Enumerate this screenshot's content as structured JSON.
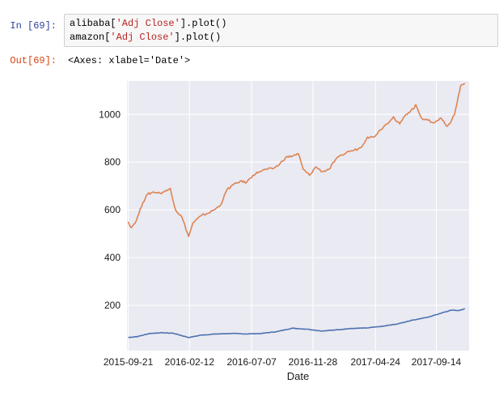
{
  "input_cell": {
    "prompt": "In  [69]:",
    "lines": [
      {
        "prefix": "alibaba[",
        "string": "'Adj Close'",
        "suffix": "].plot()"
      },
      {
        "prefix": "amazon[",
        "string": "'Adj Close'",
        "suffix": "].plot()"
      }
    ]
  },
  "output_cell": {
    "prompt": "Out[69]:",
    "text": "<Axes: xlabel='Date'>"
  },
  "colors": {
    "background": "#eaeaf2",
    "grid": "#ffffff",
    "series_blue": "#4c72b0",
    "series_orange": "#dd8452"
  },
  "chart_data": {
    "type": "line",
    "title": "",
    "xlabel": "Date",
    "ylabel": "",
    "xlim": [
      "2015-09-18",
      "2017-11-30"
    ],
    "ylim": [
      10,
      1140
    ],
    "grid": true,
    "x_ticks": [
      "2015-09-21",
      "2016-02-12",
      "2016-07-07",
      "2016-11-28",
      "2017-04-24",
      "2017-09-14"
    ],
    "y_ticks": [
      200,
      400,
      600,
      800,
      1000
    ],
    "series": [
      {
        "color": "#4c72b0",
        "x": [
          "2015-09-21",
          "2015-10-15",
          "2015-11-10",
          "2015-12-05",
          "2016-01-05",
          "2016-02-10",
          "2016-03-10",
          "2016-04-15",
          "2016-05-20",
          "2016-06-25",
          "2016-07-30",
          "2016-09-05",
          "2016-10-10",
          "2016-11-15",
          "2016-12-20",
          "2017-01-25",
          "2017-03-01",
          "2017-04-05",
          "2017-05-10",
          "2017-06-15",
          "2017-07-20",
          "2017-08-25",
          "2017-09-30",
          "2017-10-20",
          "2017-11-05",
          "2017-11-20"
        ],
        "y": [
          65,
          70,
          82,
          85,
          83,
          65,
          75,
          80,
          82,
          80,
          82,
          90,
          104,
          100,
          92,
          98,
          103,
          105,
          112,
          122,
          138,
          150,
          170,
          180,
          178,
          186
        ]
      },
      {
        "color": "#dd8452",
        "x": [
          "2015-09-21",
          "2015-09-28",
          "2015-10-10",
          "2015-10-25",
          "2015-11-05",
          "2015-11-20",
          "2015-12-05",
          "2015-12-20",
          "2015-12-29",
          "2016-01-10",
          "2016-01-25",
          "2016-02-10",
          "2016-02-20",
          "2016-03-10",
          "2016-03-25",
          "2016-04-10",
          "2016-04-25",
          "2016-05-10",
          "2016-05-25",
          "2016-06-10",
          "2016-06-25",
          "2016-07-10",
          "2016-07-25",
          "2016-08-10",
          "2016-08-25",
          "2016-09-10",
          "2016-09-25",
          "2016-10-10",
          "2016-10-25",
          "2016-11-05",
          "2016-11-20",
          "2016-12-05",
          "2016-12-20",
          "2017-01-05",
          "2017-01-20",
          "2017-02-05",
          "2017-02-20",
          "2017-03-05",
          "2017-03-20",
          "2017-04-05",
          "2017-04-20",
          "2017-05-05",
          "2017-05-20",
          "2017-06-05",
          "2017-06-10",
          "2017-06-20",
          "2017-07-05",
          "2017-07-25",
          "2017-07-28",
          "2017-08-10",
          "2017-08-25",
          "2017-09-10",
          "2017-09-25",
          "2017-10-10",
          "2017-10-20",
          "2017-10-27",
          "2017-11-10",
          "2017-11-20"
        ],
        "y": [
          550,
          525,
          555,
          630,
          665,
          675,
          670,
          680,
          690,
          600,
          570,
          488,
          545,
          575,
          585,
          600,
          620,
          685,
          705,
          720,
          715,
          745,
          760,
          770,
          772,
          790,
          820,
          825,
          835,
          770,
          745,
          780,
          760,
          770,
          810,
          830,
          845,
          850,
          860,
          905,
          905,
          935,
          960,
          990,
          975,
          960,
          1000,
          1030,
          1040,
          985,
          975,
          965,
          985,
          950,
          975,
          1000,
          1120,
          1130
        ]
      }
    ]
  }
}
